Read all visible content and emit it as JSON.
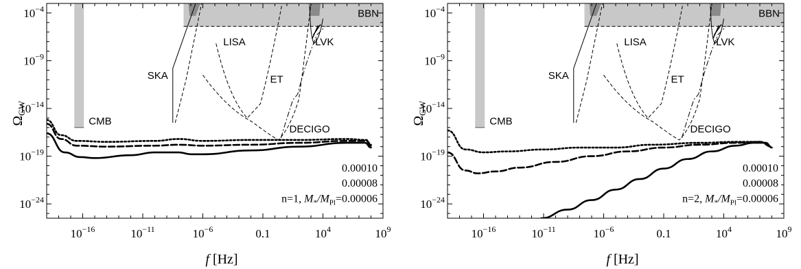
{
  "chart_data": [
    {
      "type": "line",
      "panel": "left",
      "xlabel": "f [Hz]",
      "ylabel": "Ω_GW",
      "x_scale": "log",
      "y_scale": "log",
      "xlim_log10": [
        -19,
        9
      ],
      "ylim_log10": [
        -25.5,
        -3
      ],
      "x_ticks": [
        "10^-16",
        "10^-11",
        "10^-6",
        "0.1",
        "10^4",
        "10^9"
      ],
      "x_tick_log10": [
        -16,
        -11,
        -6,
        -1,
        4,
        9
      ],
      "y_ticks": [
        "10^-4",
        "10^-9",
        "10^-14",
        "10^-19",
        "10^-24"
      ],
      "y_tick_log10": [
        -4,
        -9,
        -14,
        -19,
        -24
      ],
      "detector_labels": [
        "BBN",
        "LISA",
        "LVK",
        "SKA",
        "ET",
        "CMB",
        "DECIGO"
      ],
      "annotation_values": [
        "0.00010",
        "0.00008"
      ],
      "annotation_main": "n=1, M*/MPl=0.00006",
      "series": [
        {
          "label": "0.00006",
          "style": "solid",
          "log10_f": [
            -19,
            -17.5,
            -16.2,
            -15,
            -12,
            -10,
            -8,
            -7,
            -6,
            -2,
            2,
            6,
            7.5,
            8
          ],
          "log10_omega": [
            -16.6,
            -18.6,
            -19.1,
            -19.2,
            -18.9,
            -18.6,
            -18.6,
            -18.8,
            -18.8,
            -18.4,
            -18.0,
            -17.6,
            -17.6,
            -18.1
          ]
        },
        {
          "label": "0.00008",
          "style": "dashed",
          "log10_f": [
            -19,
            -17.8,
            -16.5,
            -14,
            -10,
            -8,
            -6,
            -2,
            2,
            6,
            7.6,
            8
          ],
          "log10_omega": [
            -15.6,
            -17.2,
            -17.9,
            -18.0,
            -17.9,
            -17.8,
            -17.9,
            -17.8,
            -17.6,
            -17.4,
            -17.4,
            -17.9
          ]
        },
        {
          "label": "0.00010",
          "style": "dotted",
          "log10_f": [
            -19,
            -17.8,
            -16.5,
            -14,
            -10,
            -8,
            -6,
            -2,
            2,
            6,
            7.6,
            8
          ],
          "log10_omega": [
            -15.2,
            -16.8,
            -17.4,
            -17.5,
            -17.4,
            -17.2,
            -17.4,
            -17.3,
            -17.3,
            -17.2,
            -17.3,
            -17.8
          ]
        }
      ]
    },
    {
      "type": "line",
      "panel": "right",
      "xlabel": "f [Hz]",
      "ylabel": "Ω_GW",
      "x_scale": "log",
      "y_scale": "log",
      "xlim_log10": [
        -19,
        9
      ],
      "ylim_log10": [
        -25.5,
        -3
      ],
      "x_ticks": [
        "10^-16",
        "10^-11",
        "10^-6",
        "0.1",
        "10^4",
        "10^9"
      ],
      "x_tick_log10": [
        -16,
        -11,
        -6,
        -1,
        4,
        9
      ],
      "y_ticks": [
        "10^-4",
        "10^-9",
        "10^-14",
        "10^-19",
        "10^-24"
      ],
      "y_tick_log10": [
        -4,
        -9,
        -14,
        -19,
        -24
      ],
      "detector_labels": [
        "BBN",
        "LISA",
        "LVK",
        "SKA",
        "ET",
        "CMB",
        "DECIGO"
      ],
      "annotation_values": [
        "0.00010",
        "0.00008"
      ],
      "annotation_main": "n=2, M*/MPl=0.00006",
      "series": [
        {
          "label": "0.00006",
          "style": "solid",
          "log10_f": [
            -11.2,
            -9,
            -7,
            -5,
            -3,
            -1,
            1,
            3,
            5,
            6.5,
            7.5,
            8
          ],
          "log10_omega": [
            -25.5,
            -24.6,
            -23.6,
            -22.5,
            -21.4,
            -20.3,
            -19.3,
            -18.5,
            -17.9,
            -17.6,
            -17.6,
            -18.1
          ]
        },
        {
          "label": "0.00008",
          "style": "dashed",
          "log10_f": [
            -19,
            -17.5,
            -16.5,
            -15,
            -13,
            -10,
            -7,
            -4,
            -1,
            2,
            5,
            7,
            8
          ],
          "log10_omega": [
            -18.6,
            -20.5,
            -20.8,
            -20.6,
            -20.2,
            -19.6,
            -19.0,
            -18.5,
            -18.1,
            -17.8,
            -17.6,
            -17.5,
            -18.0
          ]
        },
        {
          "label": "0.00010",
          "style": "dotted",
          "log10_f": [
            -19,
            -17.5,
            -16,
            -14,
            -11,
            -8,
            -5,
            -2,
            2,
            5,
            7,
            8
          ],
          "log10_omega": [
            -16.3,
            -18.3,
            -18.6,
            -18.5,
            -18.3,
            -18.1,
            -18.1,
            -17.8,
            -17.6,
            -17.5,
            -17.5,
            -18.0
          ]
        }
      ]
    }
  ],
  "panels": {
    "left": {
      "annot_n": "n=1, ",
      "annot_ratio_label_1": "M",
      "annot_ratio_label_2": "/M",
      "annot_ratio_sub": "Pl",
      "annot_ratio_value": "=0.00006"
    },
    "right": {
      "annot_n": "n=2, ",
      "annot_ratio_label_1": "M",
      "annot_ratio_label_2": "/M",
      "annot_ratio_sub": "Pl",
      "annot_ratio_value": "=0.00006"
    }
  },
  "axis_text": {
    "x_italic": "f",
    "x_unit": " [Hz]",
    "y_main": "Ω",
    "y_sub": "GW"
  }
}
